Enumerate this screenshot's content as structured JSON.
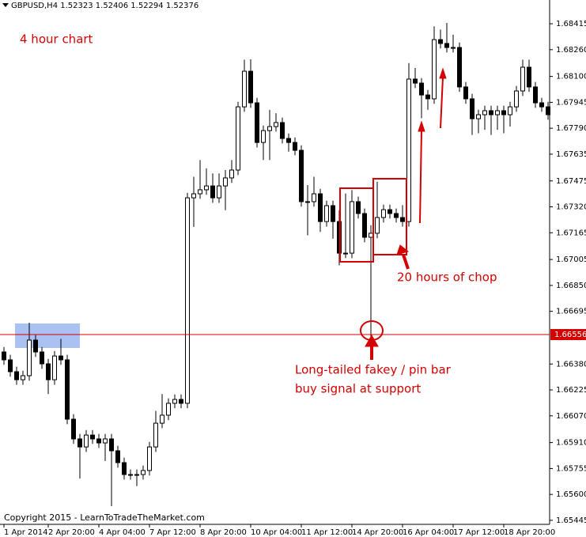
{
  "chart_data": {
    "type": "candlestick",
    "title": "GBPUSD,H4  1.52323 1.52406 1.52294 1.52376",
    "annotations": [
      "4 hour chart",
      "20 hours of chop",
      "Long-tailed fakey / pin bar",
      "buy signal at support",
      "Copyright 2015 - LearnToTradeTheMarket.com"
    ],
    "hline": 1.66556,
    "hline_color": "#d40000",
    "up_color": "#ffffff",
    "down_color": "#000000",
    "ylim": [
      1.65421,
      1.68557
    ],
    "yticks": [
      1.68415,
      {
        "value": 1.6826,
        "label": "1.68260"
      },
      {
        "value": 1.681,
        "label": "1.68100"
      },
      1.67945,
      {
        "value": 1.6779,
        "label": "1.67790"
      },
      1.67635,
      1.67475,
      {
        "value": 1.6732,
        "label": "1.67320"
      },
      1.67165,
      1.67005,
      {
        "value": 1.6685,
        "label": "1.66850"
      },
      1.66695,
      {
        "value": 1.6638,
        "label": "1.66380"
      },
      1.66225,
      {
        "value": 1.6607,
        "label": "1.66070"
      },
      {
        "value": 1.6591,
        "label": "1.65910"
      },
      1.65755,
      {
        "value": 1.656,
        "label": "1.65600"
      },
      1.65445
    ],
    "xticks": [
      {
        "value": 0,
        "label": "1 Apr 2014"
      },
      {
        "value": 7,
        "label": "2 Apr 20:00"
      },
      {
        "value": 15,
        "label": "4 Apr 04:00"
      },
      {
        "value": 23,
        "label": "7 Apr 12:00"
      },
      {
        "value": 31,
        "label": "8 Apr 20:00"
      },
      {
        "value": 39,
        "label": "10 Apr 04:00"
      },
      {
        "value": 47,
        "label": "11 Apr 12:00"
      },
      {
        "value": 55,
        "label": "14 Apr 20:00"
      },
      {
        "value": 63,
        "label": "16 Apr 04:00"
      },
      {
        "value": 71,
        "label": "17 Apr 12:00"
      },
      {
        "value": 79,
        "label": "18 Apr 20:00"
      }
    ],
    "open": [
      1.66452,
      1.66405,
      1.66334,
      1.66286,
      1.6631,
      1.66523,
      1.66452,
      1.66381,
      1.66286,
      1.66428,
      1.66405,
      1.6605,
      1.65932,
      1.65884,
      1.65955,
      1.65932,
      1.65908,
      1.65932,
      1.65861,
      1.6579,
      1.65719,
      1.65719,
      1.65719,
      1.65743,
      1.65884,
      1.66026,
      1.66074,
      1.66145,
      1.66168,
      1.66145,
      1.67374,
      1.67398,
      1.67422,
      1.67445,
      1.67374,
      1.67445,
      1.67493,
      1.6754,
      1.67918,
      1.68131,
      1.67942,
      1.67705,
      1.67776,
      1.678,
      1.67824,
      1.67729,
      1.67705,
      1.67658,
      1.67351,
      1.67351,
      1.67398,
      1.67232,
      1.67327,
      1.67232,
      1.67043,
      1.67043,
      1.67351,
      1.6728,
      1.67138,
      1.67162,
      1.67256,
      1.67303,
      1.6728,
      1.67256,
      1.67232,
      1.68084,
      1.6806,
      1.67989,
      1.67966,
      1.6832,
      1.68297,
      1.68273,
      1.68273,
      1.68037,
      1.67966,
      1.67847,
      1.67871,
      1.67895,
      1.67871,
      1.67895,
      1.67871,
      1.67918,
      1.68013,
      1.68155,
      1.68037,
      1.67942,
      1.67918
    ],
    "high": [
      1.66482,
      1.66435,
      1.66364,
      1.6634,
      1.66627,
      1.66553,
      1.66482,
      1.66411,
      1.66458,
      1.6653,
      1.66435,
      1.6608,
      1.65962,
      1.65985,
      1.65985,
      1.65962,
      1.65962,
      1.65962,
      1.65891,
      1.6582,
      1.65749,
      1.65749,
      1.65773,
      1.65914,
      1.661,
      1.662,
      1.66175,
      1.66198,
      1.66198,
      1.67404,
      1.675,
      1.676,
      1.6755,
      1.6752,
      1.6752,
      1.6754,
      1.676,
      1.67948,
      1.682,
      1.68202,
      1.67972,
      1.67806,
      1.679,
      1.6788,
      1.67854,
      1.67759,
      1.67735,
      1.67688,
      1.6745,
      1.675,
      1.67428,
      1.67357,
      1.67357,
      1.673,
      1.674,
      1.6742,
      1.67381,
      1.6731,
      1.6721,
      1.6747,
      1.67333,
      1.67333,
      1.6731,
      1.6733,
      1.6818,
      1.6815,
      1.6809,
      1.68019,
      1.684,
      1.6838,
      1.6842,
      1.6835,
      1.68303,
      1.68067,
      1.67996,
      1.67901,
      1.67925,
      1.67925,
      1.67925,
      1.67925,
      1.67948,
      1.68043,
      1.682,
      1.682,
      1.68067,
      1.67972,
      1.67948
    ],
    "low": [
      1.66375,
      1.66304,
      1.66256,
      1.66256,
      1.6628,
      1.66422,
      1.66351,
      1.662,
      1.66256,
      1.66375,
      1.6602,
      1.65902,
      1.65695,
      1.65854,
      1.65902,
      1.65878,
      1.658,
      1.6553,
      1.6576,
      1.65689,
      1.65689,
      1.6565,
      1.65689,
      1.65713,
      1.65854,
      1.65996,
      1.66044,
      1.66115,
      1.66115,
      1.66115,
      1.672,
      1.67368,
      1.67392,
      1.67344,
      1.67344,
      1.673,
      1.67463,
      1.6751,
      1.67888,
      1.67912,
      1.67675,
      1.676,
      1.676,
      1.6777,
      1.67699,
      1.6765,
      1.67628,
      1.67321,
      1.6715,
      1.67321,
      1.6717,
      1.67202,
      1.6713,
      1.6697,
      1.67013,
      1.67013,
      1.6725,
      1.67108,
      1.66523,
      1.67132,
      1.67226,
      1.6725,
      1.67226,
      1.67202,
      1.67202,
      1.6803,
      1.6785,
      1.679,
      1.67936,
      1.68267,
      1.68243,
      1.68243,
      1.68007,
      1.67936,
      1.6775,
      1.6776,
      1.6778,
      1.6775,
      1.6778,
      1.6776,
      1.678,
      1.67888,
      1.67983,
      1.68007,
      1.67912,
      1.67888,
      1.67841
    ],
    "close": [
      1.66405,
      1.66334,
      1.66286,
      1.6631,
      1.66523,
      1.66452,
      1.66381,
      1.66286,
      1.66428,
      1.66405,
      1.6605,
      1.65932,
      1.65884,
      1.65955,
      1.65932,
      1.65908,
      1.65932,
      1.65861,
      1.6579,
      1.65719,
      1.65719,
      1.65719,
      1.65743,
      1.65884,
      1.66026,
      1.66074,
      1.66145,
      1.66168,
      1.66145,
      1.67374,
      1.67398,
      1.67422,
      1.67445,
      1.67374,
      1.67445,
      1.67493,
      1.6754,
      1.67918,
      1.68131,
      1.67942,
      1.67705,
      1.67776,
      1.678,
      1.67824,
      1.67729,
      1.67705,
      1.67658,
      1.67351,
      1.67351,
      1.67398,
      1.67232,
      1.67327,
      1.67232,
      1.67043,
      1.67043,
      1.67351,
      1.6728,
      1.67138,
      1.67162,
      1.67256,
      1.67303,
      1.6728,
      1.67256,
      1.67232,
      1.68084,
      1.6806,
      1.67989,
      1.67966,
      1.6832,
      1.68297,
      1.68273,
      1.68273,
      1.68037,
      1.67966,
      1.67847,
      1.67871,
      1.67895,
      1.67871,
      1.67895,
      1.67871,
      1.67918,
      1.68013,
      1.68155,
      1.68037,
      1.67942,
      1.67918,
      1.67871
    ]
  }
}
